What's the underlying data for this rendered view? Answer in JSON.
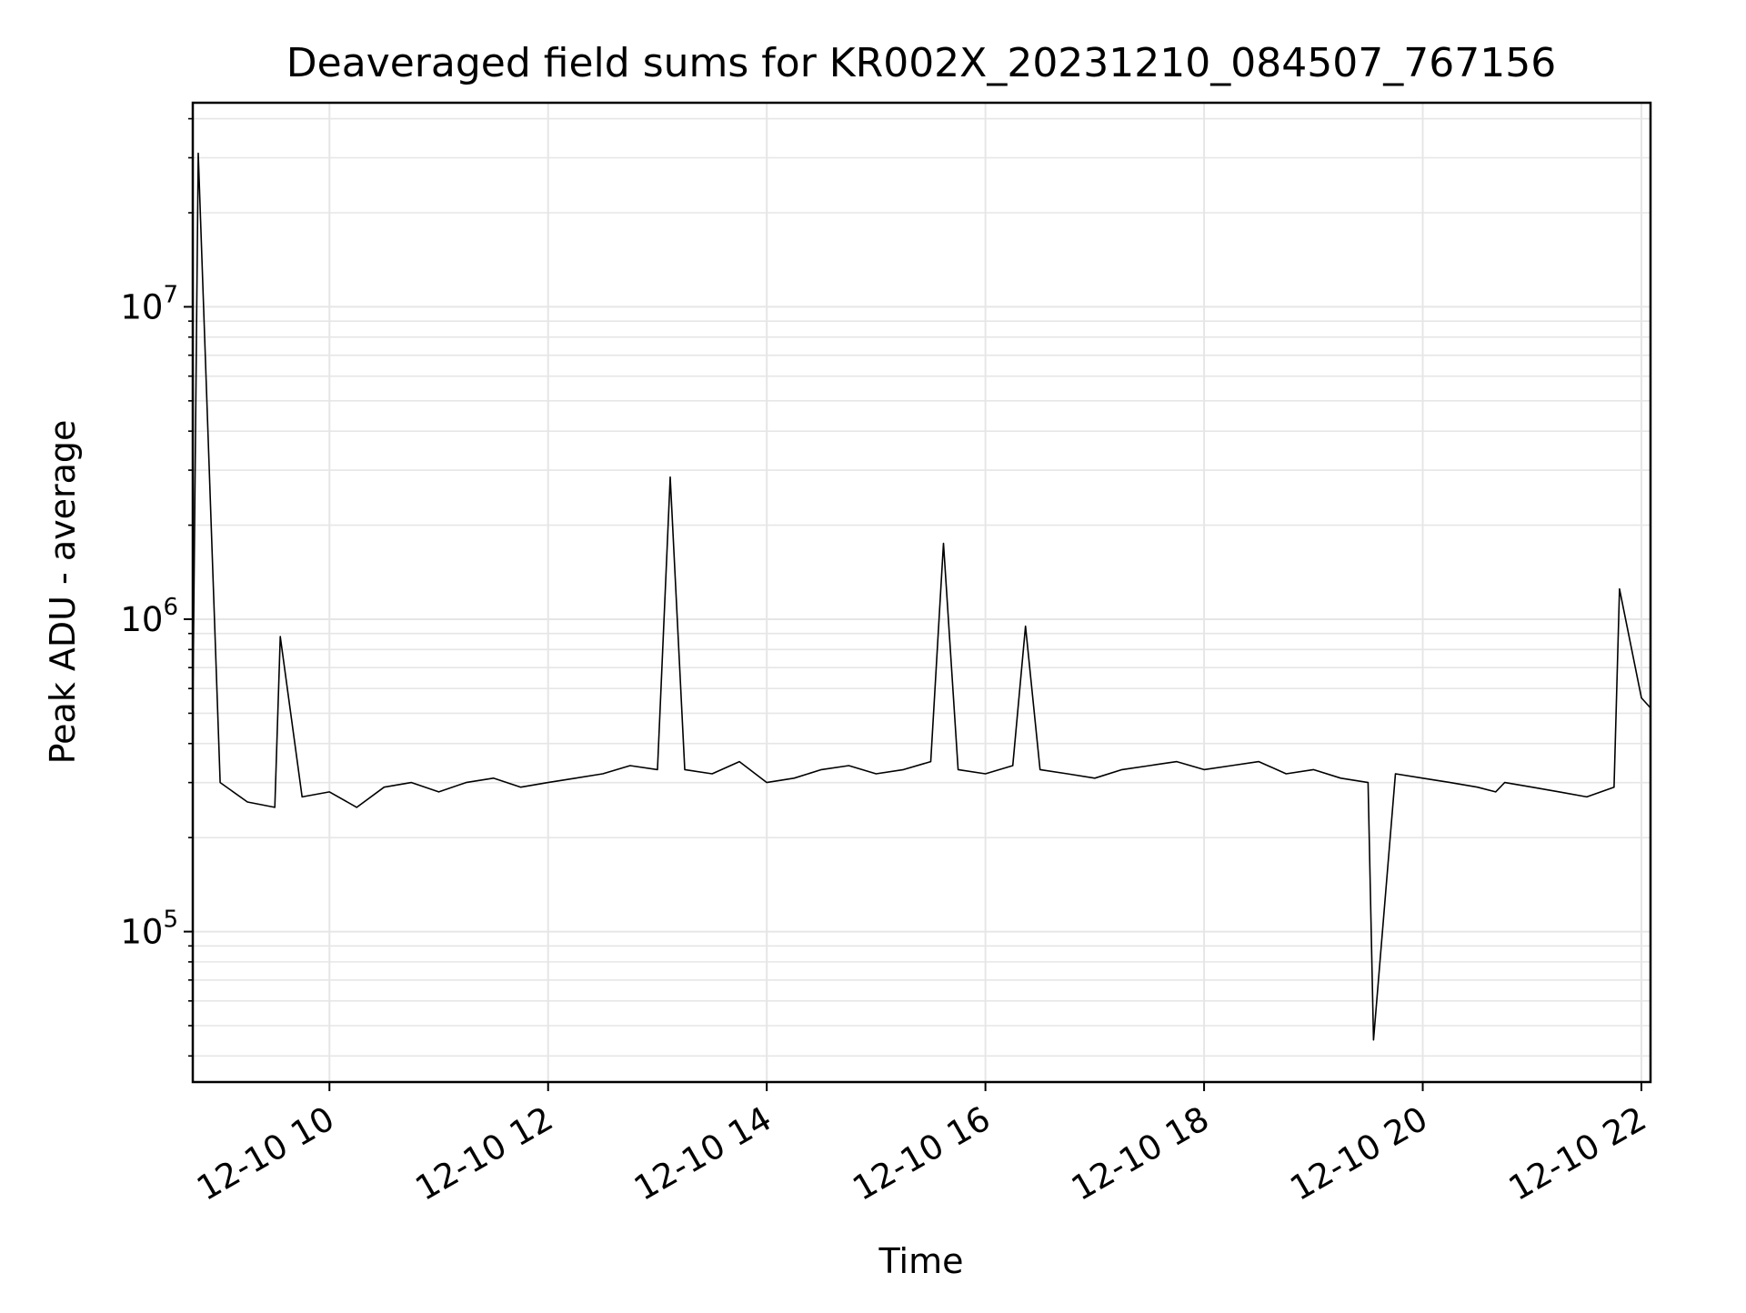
{
  "chart_data": {
    "type": "line",
    "title": "Deaveraged field sums for KR002X_20231210_084507_767156",
    "xlabel": "Time",
    "ylabel": "Peak ADU - average",
    "xscale": "time",
    "yscale": "log",
    "xlim": [
      "2023-12-10 08:45",
      "2023-12-10 22:05"
    ],
    "ylim": [
      33000,
      45000000
    ],
    "xticks": [
      {
        "value": "2023-12-10 10:00",
        "label": "12-10 10"
      },
      {
        "value": "2023-12-10 12:00",
        "label": "12-10 12"
      },
      {
        "value": "2023-12-10 14:00",
        "label": "12-10 14"
      },
      {
        "value": "2023-12-10 16:00",
        "label": "12-10 16"
      },
      {
        "value": "2023-12-10 18:00",
        "label": "12-10 18"
      },
      {
        "value": "2023-12-10 20:00",
        "label": "12-10 20"
      },
      {
        "value": "2023-12-10 22:00",
        "label": "12-10 22"
      }
    ],
    "yticks": [
      {
        "value": 100000,
        "base": "10",
        "exp": "5"
      },
      {
        "value": 1000000,
        "base": "10",
        "exp": "6"
      },
      {
        "value": 10000000,
        "base": "10",
        "exp": "7"
      }
    ],
    "grid": true,
    "line_color": "#000000",
    "series": [
      {
        "x": [
          "2023-12-10 08:45",
          "2023-12-10 08:48",
          "2023-12-10 09:00",
          "2023-12-10 09:15",
          "2023-12-10 09:30",
          "2023-12-10 09:33",
          "2023-12-10 09:45",
          "2023-12-10 10:00",
          "2023-12-10 10:15",
          "2023-12-10 10:30",
          "2023-12-10 10:45",
          "2023-12-10 11:00",
          "2023-12-10 11:15",
          "2023-12-10 11:30",
          "2023-12-10 11:45",
          "2023-12-10 12:00",
          "2023-12-10 12:15",
          "2023-12-10 12:30",
          "2023-12-10 12:45",
          "2023-12-10 13:00",
          "2023-12-10 13:07",
          "2023-12-10 13:15",
          "2023-12-10 13:30",
          "2023-12-10 13:45",
          "2023-12-10 14:00",
          "2023-12-10 14:15",
          "2023-12-10 14:30",
          "2023-12-10 14:45",
          "2023-12-10 15:00",
          "2023-12-10 15:15",
          "2023-12-10 15:30",
          "2023-12-10 15:37",
          "2023-12-10 15:45",
          "2023-12-10 16:00",
          "2023-12-10 16:15",
          "2023-12-10 16:22",
          "2023-12-10 16:30",
          "2023-12-10 16:45",
          "2023-12-10 17:00",
          "2023-12-10 17:15",
          "2023-12-10 17:30",
          "2023-12-10 17:45",
          "2023-12-10 18:00",
          "2023-12-10 18:15",
          "2023-12-10 18:30",
          "2023-12-10 18:45",
          "2023-12-10 19:00",
          "2023-12-10 19:15",
          "2023-12-10 19:30",
          "2023-12-10 19:33",
          "2023-12-10 19:45",
          "2023-12-10 20:00",
          "2023-12-10 20:15",
          "2023-12-10 20:30",
          "2023-12-10 20:40",
          "2023-12-10 20:45",
          "2023-12-10 21:00",
          "2023-12-10 21:15",
          "2023-12-10 21:30",
          "2023-12-10 21:45",
          "2023-12-10 21:48",
          "2023-12-10 22:00",
          "2023-12-10 22:05"
        ],
        "y": [
          500000,
          31000000,
          300000,
          260000,
          250000,
          880000,
          270000,
          280000,
          250000,
          290000,
          300000,
          280000,
          300000,
          310000,
          290000,
          300000,
          310000,
          320000,
          340000,
          330000,
          2850000,
          330000,
          320000,
          350000,
          300000,
          310000,
          330000,
          340000,
          320000,
          330000,
          350000,
          1750000,
          330000,
          320000,
          340000,
          950000,
          330000,
          320000,
          310000,
          330000,
          340000,
          350000,
          330000,
          340000,
          350000,
          320000,
          330000,
          310000,
          300000,
          45000,
          320000,
          310000,
          300000,
          290000,
          280000,
          300000,
          290000,
          280000,
          270000,
          290000,
          1250000,
          560000,
          520000
        ]
      }
    ]
  }
}
